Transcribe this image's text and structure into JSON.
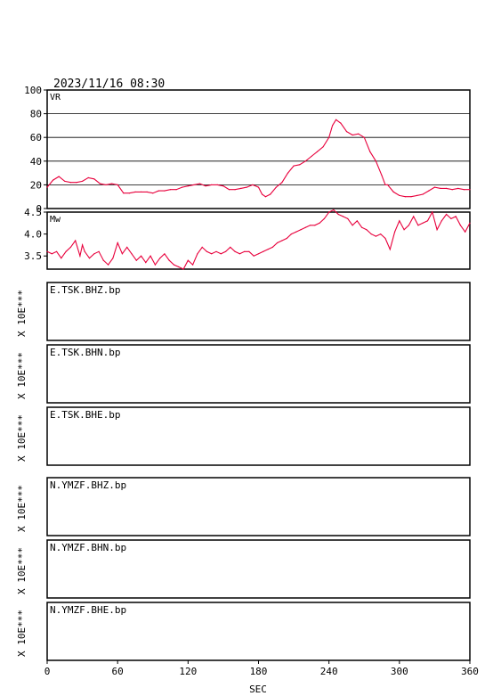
{
  "header": {
    "timestamp": "2023/11/16 08:30"
  },
  "colors": {
    "axis": "#000000",
    "line": "#e8003c",
    "background": "#ffffff"
  },
  "chart_data": [
    {
      "type": "line",
      "label": "VR",
      "ylim": [
        0,
        100
      ],
      "yticks": [
        "0",
        "20",
        "40",
        "60",
        "80",
        "100"
      ],
      "grid": true,
      "xlim": [
        0,
        360
      ],
      "x": [
        0,
        5,
        10,
        15,
        20,
        25,
        30,
        35,
        40,
        45,
        50,
        55,
        60,
        65,
        70,
        75,
        80,
        85,
        90,
        95,
        100,
        105,
        110,
        115,
        120,
        125,
        130,
        135,
        140,
        145,
        150,
        155,
        160,
        165,
        170,
        175,
        180,
        183,
        186,
        190,
        195,
        200,
        205,
        210,
        215,
        220,
        225,
        230,
        235,
        240,
        243,
        246,
        250,
        255,
        260,
        265,
        270,
        275,
        280,
        285,
        288,
        290,
        295,
        300,
        305,
        310,
        315,
        320,
        325,
        330,
        335,
        340,
        345,
        350,
        355,
        360
      ],
      "values": [
        18,
        24,
        27,
        23,
        22,
        22,
        23,
        26,
        25,
        21,
        20,
        21,
        20,
        13,
        13,
        14,
        14,
        14,
        13,
        15,
        15,
        16,
        16,
        18,
        19,
        20,
        21,
        19,
        20,
        20,
        19,
        16,
        16,
        17,
        18,
        20,
        18,
        12,
        10,
        12,
        18,
        22,
        30,
        36,
        37,
        40,
        44,
        48,
        52,
        60,
        70,
        75,
        72,
        65,
        62,
        63,
        60,
        48,
        40,
        28,
        20,
        20,
        14,
        11,
        10,
        10,
        11,
        12,
        15,
        18,
        17,
        17,
        16,
        17,
        16,
        16
      ]
    },
    {
      "type": "line",
      "label": "Mw",
      "ylim": [
        3.2,
        4.5
      ],
      "yticks": [
        "3.5",
        "4.0",
        "4.5"
      ],
      "grid": false,
      "xlim": [
        0,
        360
      ],
      "x": [
        0,
        4,
        8,
        12,
        16,
        20,
        24,
        28,
        30,
        32,
        36,
        40,
        44,
        48,
        52,
        56,
        60,
        64,
        68,
        72,
        76,
        80,
        84,
        88,
        92,
        96,
        100,
        104,
        108,
        112,
        116,
        120,
        124,
        128,
        132,
        136,
        140,
        144,
        148,
        152,
        156,
        160,
        164,
        168,
        172,
        176,
        180,
        184,
        188,
        192,
        196,
        200,
        204,
        208,
        212,
        216,
        220,
        224,
        228,
        232,
        236,
        240,
        244,
        248,
        252,
        256,
        260,
        264,
        268,
        272,
        276,
        280,
        284,
        288,
        292,
        296,
        300,
        304,
        308,
        312,
        316,
        320,
        324,
        328,
        332,
        336,
        340,
        344,
        348,
        352,
        356,
        360
      ],
      "values": [
        3.6,
        3.55,
        3.6,
        3.45,
        3.6,
        3.7,
        3.85,
        3.5,
        3.75,
        3.6,
        3.45,
        3.55,
        3.6,
        3.4,
        3.3,
        3.45,
        3.8,
        3.55,
        3.7,
        3.55,
        3.4,
        3.5,
        3.35,
        3.5,
        3.3,
        3.45,
        3.55,
        3.4,
        3.3,
        3.25,
        3.2,
        3.4,
        3.3,
        3.55,
        3.7,
        3.6,
        3.55,
        3.6,
        3.55,
        3.6,
        3.7,
        3.6,
        3.55,
        3.6,
        3.6,
        3.5,
        3.55,
        3.6,
        3.65,
        3.7,
        3.8,
        3.85,
        3.9,
        4.0,
        4.05,
        4.1,
        4.15,
        4.2,
        4.2,
        4.25,
        4.35,
        4.5,
        4.55,
        4.45,
        4.4,
        4.35,
        4.2,
        4.3,
        4.15,
        4.1,
        4.0,
        3.95,
        4.0,
        3.9,
        3.65,
        4.05,
        4.3,
        4.1,
        4.2,
        4.4,
        4.2,
        4.25,
        4.3,
        4.5,
        4.1,
        4.3,
        4.45,
        4.35,
        4.4,
        4.2,
        4.05,
        4.25
      ]
    }
  ],
  "waveform_panels": [
    {
      "label": "E.TSK.BHZ.bp",
      "scale_label": "X 10E***"
    },
    {
      "label": "E.TSK.BHN.bp",
      "scale_label": "X 10E***"
    },
    {
      "label": "E.TSK.BHE.bp",
      "scale_label": "X 10E***"
    },
    {
      "label": "N.YMZF.BHZ.bp",
      "scale_label": "X 10E***"
    },
    {
      "label": "N.YMZF.BHN.bp",
      "scale_label": "X 10E***"
    },
    {
      "label": "N.YMZF.BHE.bp",
      "scale_label": "X 10E***"
    }
  ],
  "x_axis": {
    "label": "SEC",
    "ticks": [
      0,
      60,
      120,
      180,
      240,
      300,
      360
    ],
    "tick_labels": [
      "0",
      "60",
      "120",
      "180",
      "240",
      "300",
      "360"
    ]
  }
}
